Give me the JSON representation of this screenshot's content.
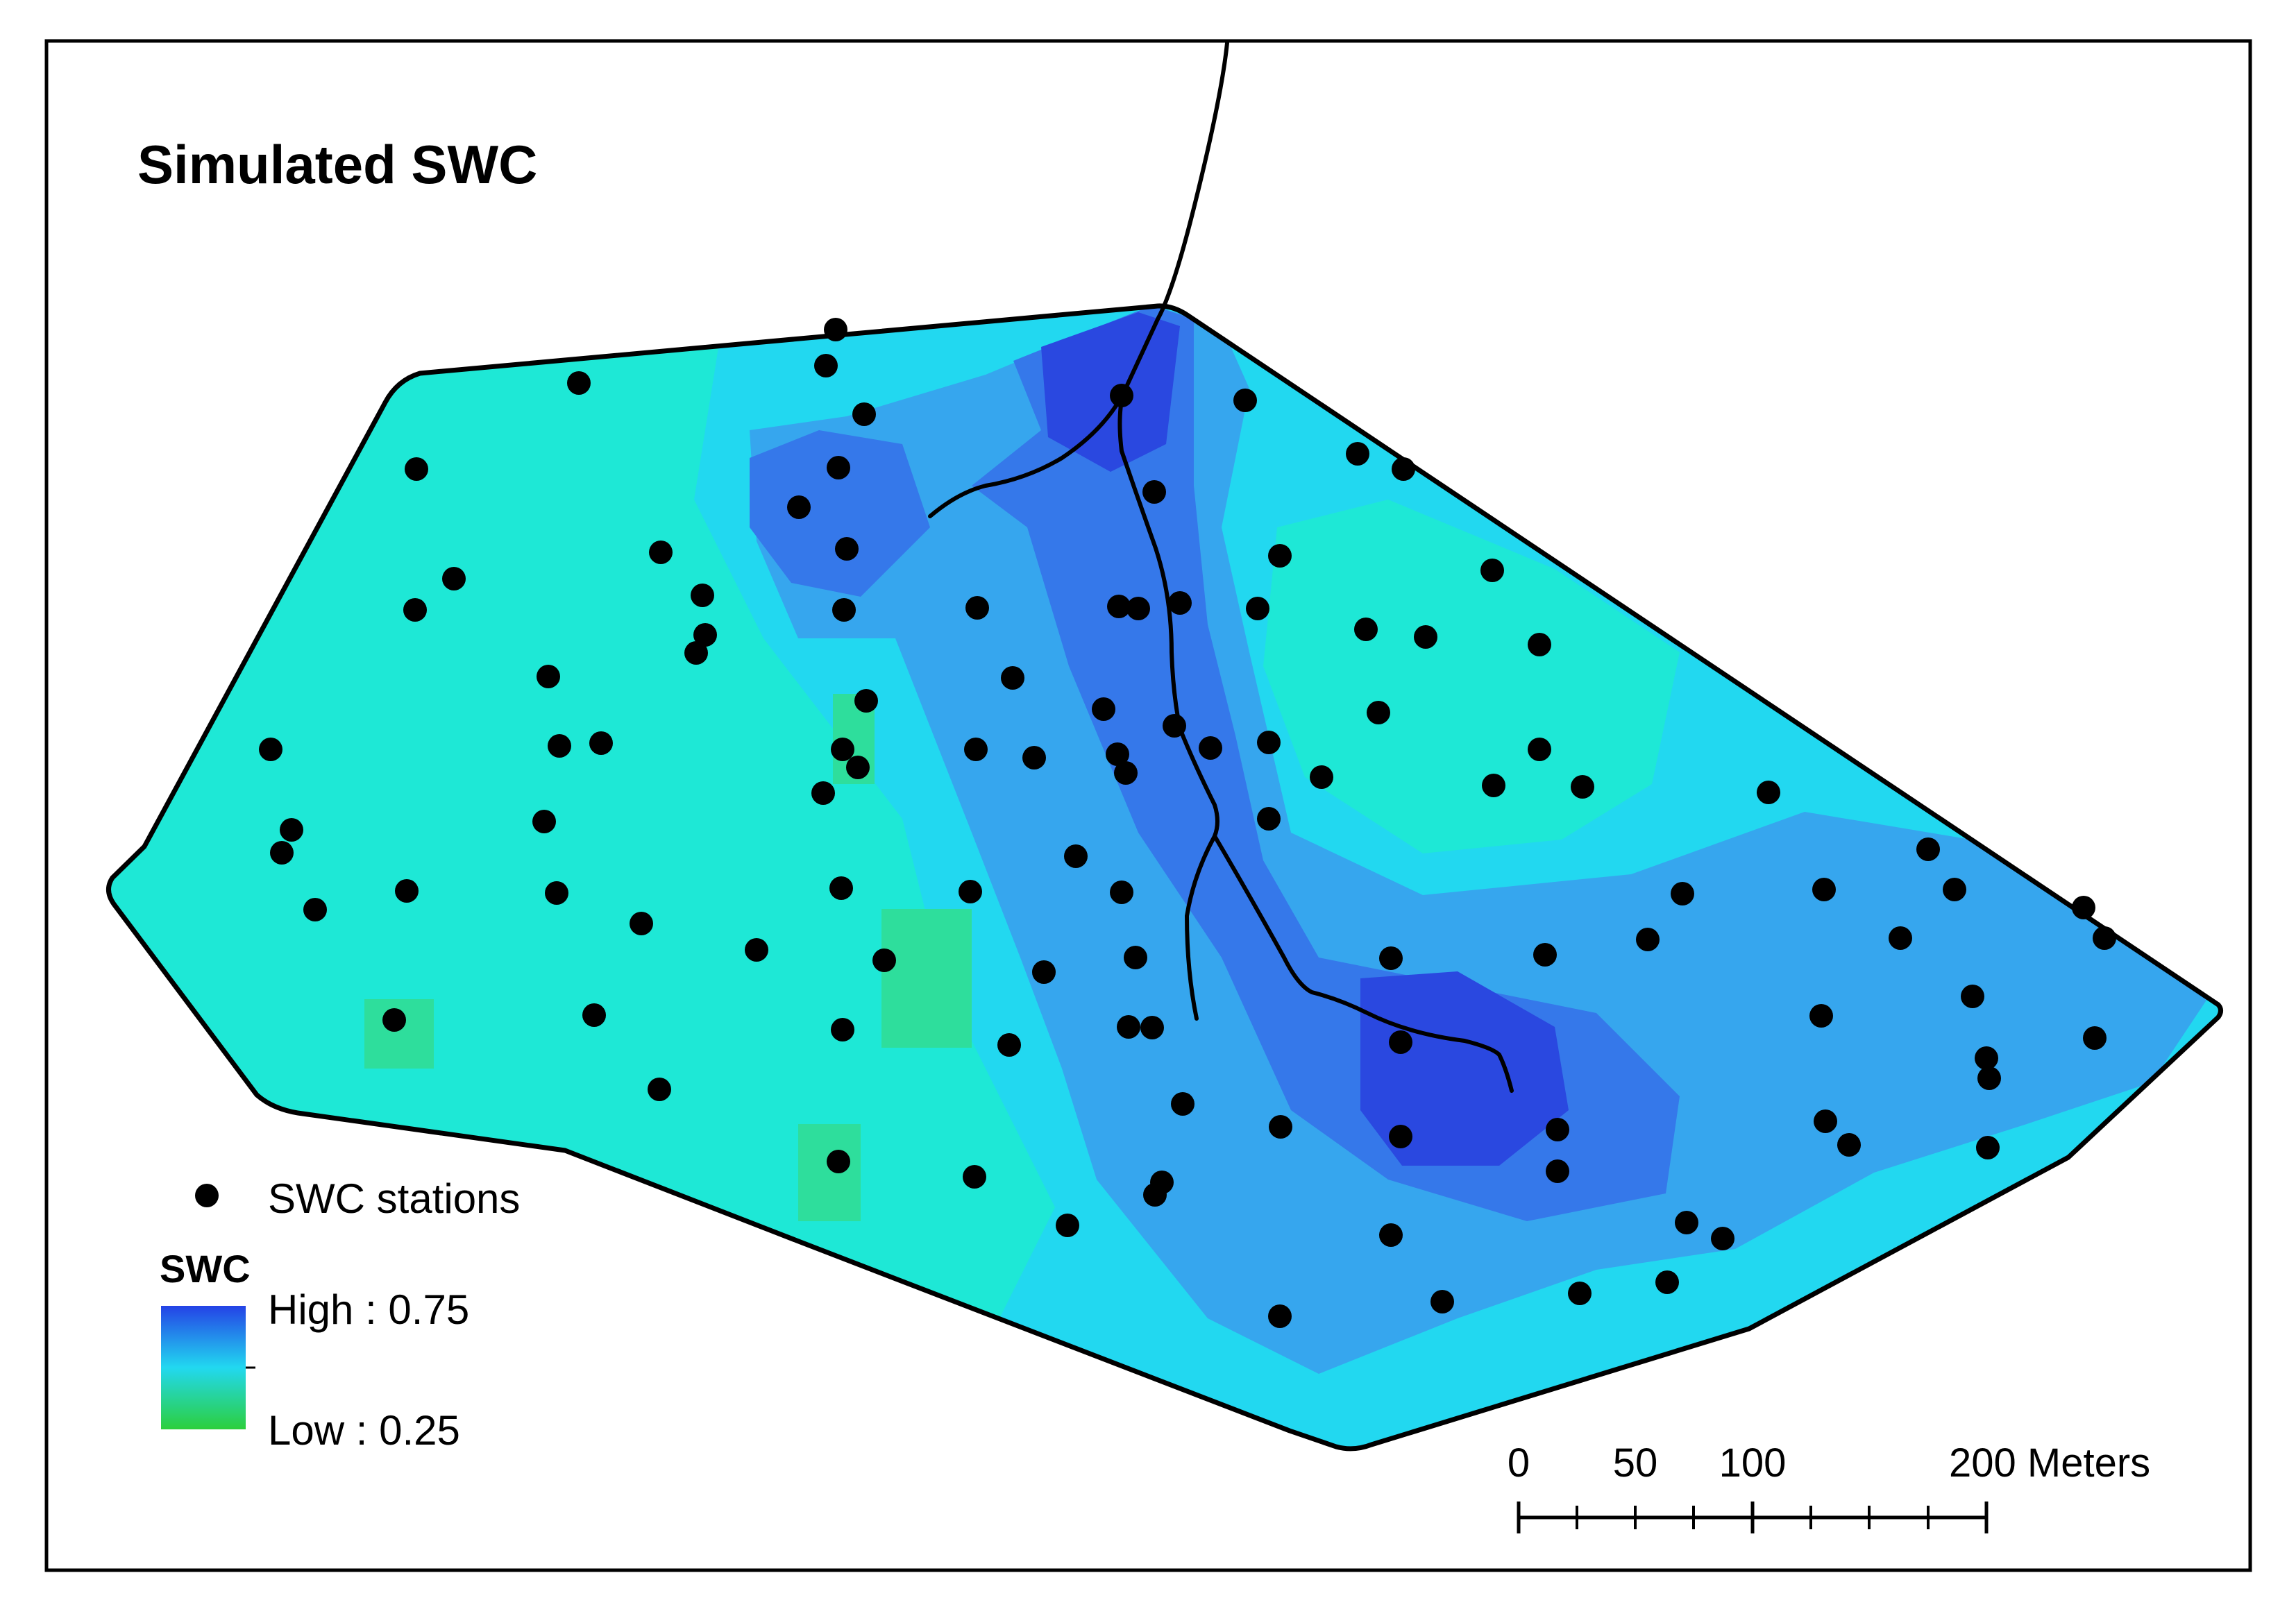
{
  "title": "Simulated SWC",
  "legend": {
    "stations_label": "SWC stations",
    "raster_heading": "SWC",
    "high_label": "High : 0.75",
    "low_label": "Low : 0.25",
    "color_high": "#2442e6",
    "color_mid": "#22d8f0",
    "color_low": "#2ccf3c"
  },
  "scale_bar": {
    "labels": [
      "0",
      "50",
      "100",
      "200 Meters"
    ]
  },
  "colors": {
    "swc_very_high": "#2a48e0",
    "swc_high": "#3578ea",
    "swc_mid_high": "#36a6ee",
    "swc_mid": "#22d8f0",
    "swc_mid_low": "#1ee8d6",
    "swc_low": "#2ede9c",
    "boundary": "#000000",
    "station": "#000000"
  }
}
